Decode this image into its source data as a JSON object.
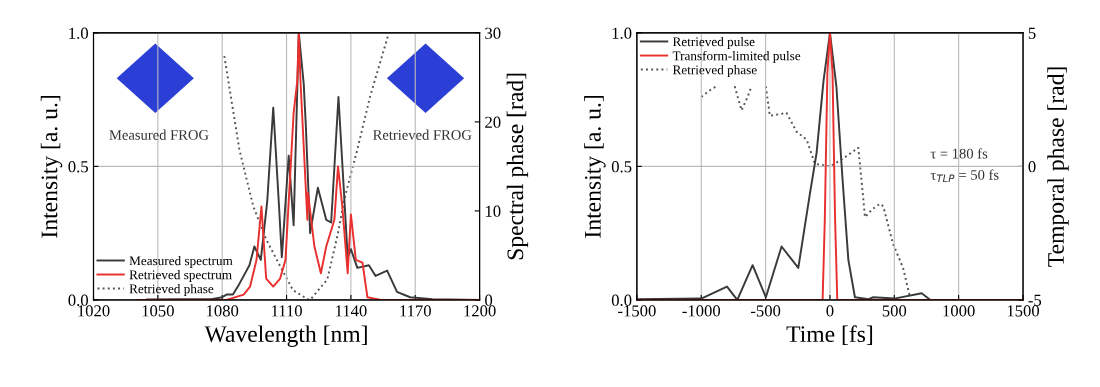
{
  "chart_data": [
    {
      "type": "line",
      "xlabel": "Wavelength [nm]",
      "ylabel": "Intensity [a. u.]",
      "y2label": "Spectral phase [rad]",
      "xlim": [
        1020,
        1200
      ],
      "xticks": [
        1020,
        1050,
        1080,
        1110,
        1140,
        1170,
        1200
      ],
      "ylim": [
        0,
        1
      ],
      "yticks": [
        {
          "value": 0,
          "label": "0.0"
        },
        {
          "value": 0.5,
          "label": "0.5"
        },
        {
          "value": 1,
          "label": "1.0"
        }
      ],
      "y2lim": [
        0,
        30
      ],
      "y2ticks": [
        0,
        10,
        20,
        30
      ],
      "grid": true,
      "legend": "bottom left",
      "annotations": [
        "Measured FROG",
        "Retrieved FROG"
      ],
      "series": [
        {
          "name": "Measured spectrum",
          "color": "#3a3a3a",
          "line_style": "solid",
          "x": [
            1045,
            1060,
            1075,
            1080,
            1082,
            1085,
            1088,
            1092.7,
            1095,
            1098,
            1101,
            1103.8,
            1106.5,
            1107.8,
            1111,
            1113.3,
            1115.7,
            1118,
            1119,
            1121,
            1124.6,
            1128.5,
            1130.8,
            1134.2,
            1136,
            1138.5,
            1140,
            1143,
            1148.4,
            1151.5,
            1156.9,
            1161.5,
            1167.6,
            1178,
            1200
          ],
          "values": [
            0.002,
            0.003,
            0.003,
            0.01,
            0.02,
            0.02,
            0.06,
            0.13,
            0.2,
            0.15,
            0.37,
            0.72,
            0.35,
            0.16,
            0.54,
            0.28,
            1.0,
            0.81,
            0.65,
            0.25,
            0.42,
            0.3,
            0.29,
            0.76,
            0.51,
            0.16,
            0.19,
            0.12,
            0.13,
            0.09,
            0.11,
            0.03,
            0.01,
            0.003,
            0.0
          ]
        },
        {
          "name": "Retrieved spectrum",
          "color": "#e8312e",
          "line_style": "solid",
          "x": [
            1040,
            1082,
            1090,
            1093,
            1096,
            1098.3,
            1100.5,
            1103.8,
            1107,
            1109.5,
            1113.3,
            1115,
            1115.7,
            1116.5,
            1119.7,
            1120,
            1123,
            1126,
            1128.5,
            1132.3,
            1134,
            1136,
            1138.5,
            1140,
            1142.3,
            1145.4,
            1147.7,
            1154,
            1200
          ],
          "values": [
            0.0,
            0.0,
            0.02,
            0.05,
            0.15,
            0.35,
            0.08,
            0.05,
            0.08,
            0.15,
            0.7,
            0.82,
            1.0,
            0.82,
            0.3,
            0.4,
            0.2,
            0.1,
            0.2,
            0.3,
            0.5,
            0.35,
            0.1,
            0.32,
            0.15,
            0.14,
            0.01,
            0.0,
            0.0
          ]
        },
        {
          "name": "Retrieved phase",
          "color": "#555555",
          "line_style": "dotted",
          "axis": "y2",
          "x": [
            1081,
            1088,
            1094.5,
            1100.5,
            1107,
            1113,
            1119.7,
            1121,
            1129,
            1134,
            1136.9,
            1143,
            1149,
            1157.7
          ],
          "values": [
            27.4,
            16.9,
            10.5,
            6.8,
            3.8,
            1.1,
            0.1,
            0.0,
            2.3,
            7.5,
            11.3,
            16.9,
            22.9,
            30
          ]
        }
      ]
    },
    {
      "type": "line",
      "xlabel": "Time [fs]",
      "ylabel": "Intensity [a. u.]",
      "y2label": "Temporal phase [rad]",
      "xlim": [
        -1500,
        1500
      ],
      "xticks": [
        -1500,
        -1000,
        -500,
        0,
        500,
        1000,
        1500
      ],
      "ylim": [
        0,
        1
      ],
      "yticks": [
        {
          "value": 0,
          "label": "0.0"
        },
        {
          "value": 0.5,
          "label": "0.5"
        },
        {
          "value": 1,
          "label": "1.0"
        }
      ],
      "y2lim": [
        -5,
        5
      ],
      "y2ticks": [
        -5,
        0,
        5
      ],
      "grid": true,
      "legend": "top left",
      "annotations": [
        "τ = 180 fs",
        "τ$_{TLP}$ = 50 fs"
      ],
      "series": [
        {
          "name": "Retrieved pulse",
          "color": "#3a3a3a",
          "line_style": "solid",
          "x": [
            -1500,
            -1000,
            -800,
            -720,
            -601,
            -498,
            -376,
            -246,
            -155,
            -104,
            -50,
            0,
            50,
            98,
            143,
            194,
            300,
            337,
            500,
            713,
            780,
            1500
          ],
          "values": [
            0.003,
            0.005,
            0.05,
            0.0,
            0.13,
            0.01,
            0.2,
            0.12,
            0.4,
            0.55,
            0.82,
            1.0,
            0.8,
            0.45,
            0.15,
            0.01,
            0.003,
            0.01,
            0.005,
            0.025,
            0.0,
            0.0
          ]
        },
        {
          "name": "Transform-limited pulse",
          "color": "#e8312e",
          "line_style": "solid",
          "x": [
            -1500,
            -100,
            -57,
            -40,
            -20,
            0,
            20,
            40,
            57,
            100,
            1500
          ],
          "values": [
            0.0,
            0.0,
            0.0,
            0.3,
            0.85,
            1.0,
            0.85,
            0.3,
            0.0,
            0.0,
            0.0
          ]
        },
        {
          "name": "Retrieved phase",
          "color": "#555555",
          "line_style": "dotted",
          "axis": "y2",
          "x": [
            -1000,
            -920,
            -880,
            -800,
            -740,
            -687,
            -640,
            -609,
            -550,
            -498,
            -467,
            -400,
            -337,
            -259,
            -181,
            -117,
            0,
            104,
            220,
            245,
            272,
            330,
            389,
            415,
            490,
            568,
            622
          ],
          "values": [
            2.6,
            2.9,
            3.0,
            null,
            3.0,
            2.1,
            2.6,
            3.0,
            null,
            3.0,
            1.9,
            1.95,
            2.0,
            1.3,
            1.0,
            0.1,
            0.0,
            0.3,
            0.7,
            -0.5,
            -1.9,
            -1.6,
            -1.4,
            -1.5,
            -2.9,
            -3.8,
            -4.9
          ]
        }
      ]
    }
  ]
}
